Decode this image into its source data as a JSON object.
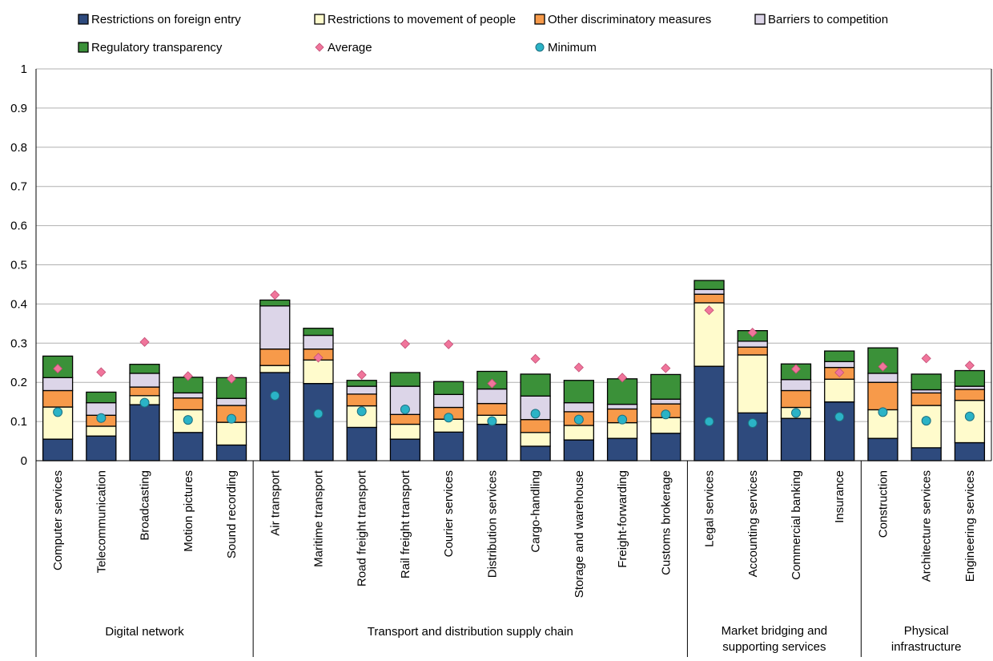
{
  "chart_data": {
    "type": "bar",
    "stacked": true,
    "ylim": [
      0,
      1
    ],
    "yticks": [
      "0",
      "0.1",
      "0.2",
      "0.3",
      "0.4",
      "0.5",
      "0.6",
      "0.7",
      "0.8",
      "0.9",
      "1"
    ],
    "grid": true,
    "legend_position": "top",
    "categories": [
      "Computer services",
      "Telecommunication",
      "Broadcasting",
      "Motion pictures",
      "Sound recording",
      "Air transport",
      "Maritime transport",
      "Road freight transport",
      "Rail freight transport",
      "Courier services",
      "Distribution services",
      "Cargo-handling",
      "Storage and warehouse",
      "Freight-forwarding",
      "Customs brokerage",
      "Legal services",
      "Accounting services",
      "Commercial banking",
      "Insurance",
      "Construction",
      "Architecture services",
      "Engineering services"
    ],
    "groups": [
      {
        "label": "Digital network",
        "count": 5
      },
      {
        "label": "Transport and distribution supply chain",
        "count": 10
      },
      {
        "label": "Market bridging and supporting services",
        "count": 4
      },
      {
        "label": "Physical infrastructure services",
        "count": 3
      }
    ],
    "series": [
      {
        "name": "Restrictions on foreign entry",
        "color": "#2e4a7d",
        "values": [
          0.055,
          0.063,
          0.143,
          0.072,
          0.04,
          0.225,
          0.197,
          0.085,
          0.055,
          0.073,
          0.093,
          0.037,
          0.053,
          0.057,
          0.07,
          0.241,
          0.122,
          0.108,
          0.15,
          0.057,
          0.033,
          0.046
        ]
      },
      {
        "name": "Restrictions to movement of people",
        "color": "#fffbcc",
        "values": [
          0.082,
          0.025,
          0.023,
          0.058,
          0.058,
          0.018,
          0.06,
          0.055,
          0.038,
          0.033,
          0.023,
          0.035,
          0.037,
          0.04,
          0.04,
          0.162,
          0.148,
          0.028,
          0.058,
          0.073,
          0.108,
          0.108
        ]
      },
      {
        "name": "Other discriminatory measures",
        "color": "#f79a4a",
        "values": [
          0.042,
          0.028,
          0.022,
          0.03,
          0.043,
          0.042,
          0.028,
          0.03,
          0.025,
          0.03,
          0.03,
          0.033,
          0.035,
          0.035,
          0.035,
          0.022,
          0.02,
          0.043,
          0.03,
          0.07,
          0.032,
          0.028
        ]
      },
      {
        "name": "Barriers to competition",
        "color": "#dcd5e8",
        "values": [
          0.033,
          0.032,
          0.035,
          0.013,
          0.018,
          0.11,
          0.035,
          0.02,
          0.072,
          0.033,
          0.037,
          0.06,
          0.023,
          0.012,
          0.012,
          0.012,
          0.015,
          0.028,
          0.015,
          0.023,
          0.008,
          0.008
        ]
      },
      {
        "name": "Regulatory transparency",
        "color": "#3b9139",
        "values": [
          0.055,
          0.027,
          0.023,
          0.04,
          0.053,
          0.015,
          0.018,
          0.015,
          0.035,
          0.033,
          0.045,
          0.056,
          0.057,
          0.065,
          0.063,
          0.023,
          0.027,
          0.04,
          0.027,
          0.065,
          0.04,
          0.04
        ]
      },
      {
        "name": "Average",
        "color": "#f0759b",
        "marker": "diamond",
        "values": [
          0.235,
          0.226,
          0.303,
          0.216,
          0.209,
          0.423,
          0.263,
          0.219,
          0.298,
          0.297,
          0.197,
          0.26,
          0.238,
          0.212,
          0.236,
          0.384,
          0.327,
          0.234,
          0.225,
          0.24,
          0.261,
          0.243
        ]
      },
      {
        "name": "Minimum",
        "color": "#2bb3c6",
        "marker": "circle",
        "values": [
          0.124,
          0.109,
          0.148,
          0.104,
          0.107,
          0.166,
          0.12,
          0.126,
          0.131,
          0.11,
          0.101,
          0.12,
          0.105,
          0.105,
          0.118,
          0.1,
          0.096,
          0.122,
          0.112,
          0.124,
          0.102,
          0.113
        ]
      }
    ]
  }
}
